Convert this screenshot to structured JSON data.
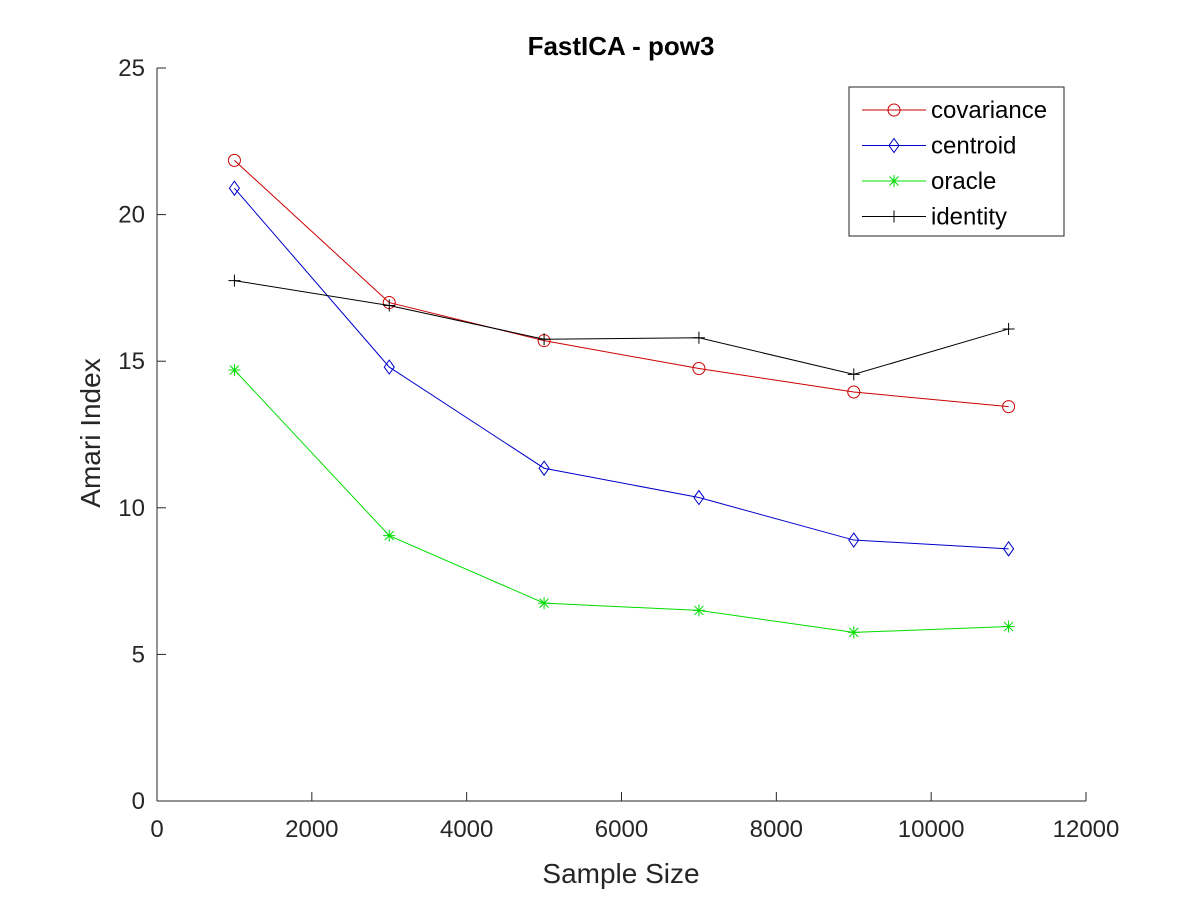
{
  "chart_data": {
    "type": "line",
    "title": "FastICA - pow3",
    "xlabel": "Sample Size",
    "ylabel": "Amari Index",
    "xlim": [
      0,
      12000
    ],
    "ylim": [
      0,
      25
    ],
    "xticks": [
      0,
      2000,
      4000,
      6000,
      8000,
      10000,
      12000
    ],
    "yticks": [
      0,
      5,
      10,
      15,
      20,
      25
    ],
    "x": [
      1000,
      3000,
      5000,
      7000,
      9000,
      11000
    ],
    "grid": false,
    "legend_position": "top-right",
    "series": [
      {
        "name": "covariance",
        "color": "#cc0000",
        "marker": "circle",
        "values": [
          21.85,
          17.0,
          15.7,
          14.75,
          13.95,
          13.45
        ]
      },
      {
        "name": "centroid",
        "color": "#0000cc",
        "marker": "diamond",
        "values": [
          20.9,
          14.8,
          11.35,
          10.35,
          8.9,
          8.6
        ]
      },
      {
        "name": "oracle",
        "color": "#00dd00",
        "marker": "star",
        "values": [
          14.7,
          9.05,
          6.75,
          6.5,
          5.75,
          5.95
        ]
      },
      {
        "name": "identity",
        "color": "#000000",
        "marker": "plus",
        "values": [
          17.75,
          16.9,
          15.75,
          15.8,
          14.55,
          16.1
        ]
      }
    ]
  }
}
